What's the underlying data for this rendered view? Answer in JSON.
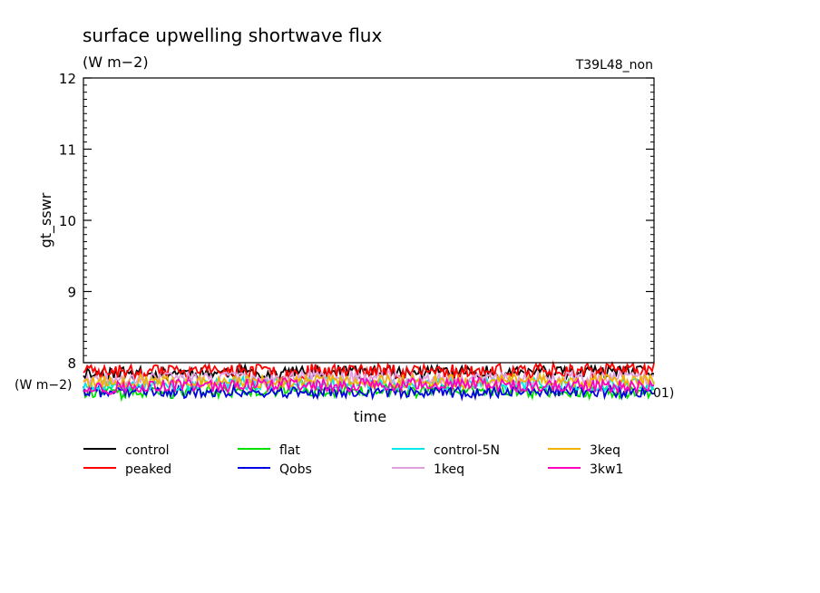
{
  "chart_data": {
    "type": "line",
    "title": "surface upwelling shortwave flux",
    "units": "(W m−2)",
    "run_label": "T39L48_non",
    "ylabel": "gt_sswr",
    "xlabel": "time",
    "y_side_units": "(W m−2)",
    "x_side_label_fragment": "01)",
    "ylim": [
      8,
      12
    ],
    "y_ticks": [
      "12",
      "11",
      "10",
      "9",
      "8"
    ],
    "grid": false,
    "legend_position": "bottom",
    "series": [
      {
        "name": "control",
        "color": "#000000",
        "mean": 7.86,
        "amp": 0.085,
        "seed": 11
      },
      {
        "name": "peaked",
        "color": "#ff0000",
        "mean": 7.89,
        "amp": 0.1,
        "seed": 23
      },
      {
        "name": "flat",
        "color": "#00e000",
        "mean": 7.6,
        "amp": 0.08,
        "seed": 37
      },
      {
        "name": "Qobs",
        "color": "#0000e0",
        "mean": 7.59,
        "amp": 0.08,
        "seed": 41
      },
      {
        "name": "control-5N",
        "color": "#00e8e8",
        "mean": 7.7,
        "amp": 0.085,
        "seed": 53
      },
      {
        "name": "1keq",
        "color": "#e0a0e0",
        "mean": 7.79,
        "amp": 0.085,
        "seed": 67
      },
      {
        "name": "3keq",
        "color": "#f0b400",
        "mean": 7.74,
        "amp": 0.09,
        "seed": 79
      },
      {
        "name": "3kw1",
        "color": "#ff00c0",
        "mean": 7.67,
        "amp": 0.09,
        "seed": 97
      }
    ]
  }
}
